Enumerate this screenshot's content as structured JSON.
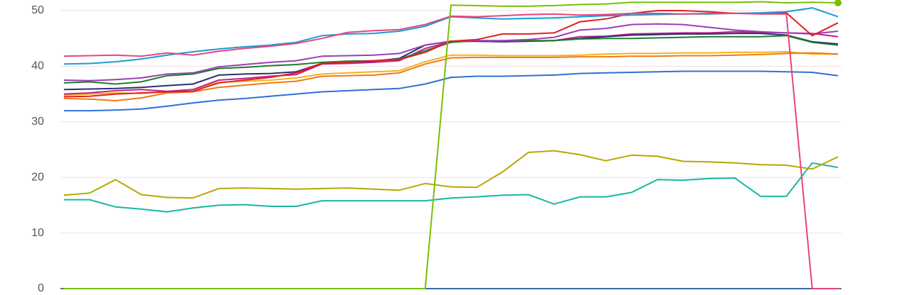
{
  "chart_data": {
    "type": "line",
    "categories": [
      null,
      null,
      null,
      null,
      null,
      null,
      null,
      null,
      null,
      null,
      null,
      null,
      null,
      null,
      null,
      null,
      null,
      null,
      null,
      null,
      null,
      null,
      null,
      null,
      null,
      null,
      null,
      null,
      null,
      null,
      null
    ],
    "ylim": [
      0,
      50
    ],
    "yticks": [
      0,
      10,
      20,
      30,
      40,
      50
    ],
    "grid": true,
    "series": [
      {
        "color": "#3a6aa0",
        "values": [
          0,
          0,
          0,
          0,
          0,
          0,
          0,
          0,
          0,
          0,
          0,
          0,
          0,
          0,
          0,
          0,
          0,
          0,
          0,
          0,
          0,
          0,
          0,
          0,
          0,
          0,
          0,
          0,
          0,
          0,
          0
        ]
      },
      {
        "color": "#18b8a0",
        "values": [
          16.0,
          16.0,
          14.7,
          14.3,
          13.8,
          14.5,
          15.0,
          15.1,
          14.8,
          14.8,
          15.8,
          15.8,
          15.8,
          15.8,
          15.8,
          16.3,
          16.5,
          16.8,
          16.9,
          15.2,
          16.5,
          16.5,
          17.3,
          19.6,
          19.5,
          19.8,
          19.9,
          16.6,
          16.6,
          22.6,
          21.8
        ]
      },
      {
        "color": "#b8a800",
        "values": [
          16.8,
          17.2,
          19.6,
          16.9,
          16.4,
          16.3,
          18.0,
          18.1,
          18.0,
          17.9,
          18.0,
          18.1,
          17.9,
          17.7,
          18.9,
          18.3,
          18.2,
          21.0,
          24.5,
          24.8,
          24.1,
          23.0,
          24.0,
          23.8,
          22.9,
          22.8,
          22.6,
          22.3,
          22.2,
          21.5,
          23.7
        ]
      },
      {
        "color": "#2f6fd6",
        "values": [
          32.0,
          32.0,
          32.1,
          32.3,
          32.8,
          33.4,
          33.9,
          34.2,
          34.6,
          35.0,
          35.4,
          35.6,
          35.8,
          36.0,
          36.8,
          38.0,
          38.2,
          38.2,
          38.3,
          38.4,
          38.7,
          38.8,
          38.9,
          39.0,
          39.1,
          39.1,
          39.1,
          39.1,
          39.0,
          38.9,
          38.3
        ]
      },
      {
        "color": "#f2b21a",
        "values": [
          34.8,
          35.0,
          35.2,
          35.1,
          35.4,
          35.8,
          37.1,
          37.3,
          37.5,
          37.9,
          38.6,
          38.8,
          39.0,
          39.2,
          40.8,
          42.0,
          42.0,
          41.9,
          41.9,
          41.9,
          42.0,
          42.2,
          42.3,
          42.3,
          42.4,
          42.4,
          42.5,
          42.5,
          42.6,
          42.2,
          42.2
        ]
      },
      {
        "color": "#f07a10",
        "values": [
          34.2,
          34.1,
          33.8,
          34.3,
          35.2,
          35.4,
          36.2,
          36.6,
          37.0,
          37.3,
          38.2,
          38.3,
          38.4,
          38.8,
          40.4,
          41.5,
          41.6,
          41.6,
          41.6,
          41.6,
          41.7,
          41.7,
          41.8,
          41.8,
          41.9,
          41.9,
          42.0,
          42.1,
          42.3,
          42.4,
          42.2
        ]
      },
      {
        "color": "#c0238f",
        "values": [
          35.0,
          35.2,
          35.6,
          35.8,
          35.5,
          35.8,
          37.5,
          37.8,
          38.2,
          38.5,
          40.4,
          40.5,
          40.7,
          41.0,
          43.2,
          44.4,
          44.5,
          44.4,
          44.5,
          44.6,
          45.3,
          45.4,
          45.8,
          45.9,
          46.0,
          46.0,
          46.2,
          46.1,
          46.0,
          45.9,
          45.3
        ]
      },
      {
        "color": "#2b2f6e",
        "values": [
          35.8,
          35.9,
          36.0,
          36.2,
          36.5,
          36.8,
          38.4,
          38.6,
          38.7,
          39.0,
          40.5,
          40.7,
          40.9,
          41.4,
          43.8,
          44.5,
          44.5,
          44.4,
          44.5,
          44.6,
          45.0,
          45.3,
          45.6,
          45.7,
          45.8,
          45.8,
          45.9,
          45.9,
          45.6,
          44.4,
          44.0
        ]
      },
      {
        "color": "#1e7d2e",
        "values": [
          37.0,
          37.2,
          36.8,
          37.2,
          38.3,
          38.6,
          39.6,
          39.8,
          40.1,
          40.3,
          40.7,
          40.9,
          41.0,
          41.3,
          42.8,
          44.3,
          44.6,
          44.5,
          44.6,
          44.6,
          44.9,
          45.0,
          45.0,
          45.1,
          45.2,
          45.3,
          45.3,
          45.3,
          45.5,
          44.3,
          43.8
        ]
      },
      {
        "color": "#9b3fb5",
        "values": [
          37.5,
          37.4,
          37.6,
          37.9,
          38.6,
          38.8,
          39.9,
          40.3,
          40.7,
          41.0,
          41.8,
          41.9,
          42.0,
          42.3,
          43.8,
          44.5,
          44.6,
          44.6,
          44.8,
          45.2,
          46.5,
          46.8,
          47.5,
          47.6,
          47.5,
          47.0,
          46.5,
          46.2,
          46.0,
          45.8,
          46.3
        ]
      },
      {
        "color": "#e02020",
        "values": [
          34.5,
          34.6,
          35.0,
          35.2,
          35.4,
          35.5,
          37.0,
          37.5,
          38.0,
          38.8,
          40.5,
          40.7,
          41.0,
          41.2,
          42.5,
          44.5,
          44.8,
          45.8,
          45.8,
          46.0,
          48.0,
          48.5,
          49.5,
          50.0,
          50.0,
          49.8,
          49.5,
          49.5,
          49.6,
          45.5,
          47.8
        ]
      },
      {
        "color": "#1a9ad6",
        "values": [
          40.4,
          40.5,
          40.8,
          41.3,
          42.0,
          42.6,
          43.1,
          43.5,
          43.8,
          44.3,
          45.5,
          45.8,
          45.9,
          46.3,
          47.2,
          48.9,
          48.7,
          48.5,
          48.6,
          48.7,
          48.9,
          49.1,
          49.2,
          49.3,
          49.4,
          49.4,
          49.5,
          49.6,
          49.8,
          50.5,
          48.9
        ]
      },
      {
        "color": "#e8457a",
        "values": [
          41.8,
          41.9,
          42.0,
          41.8,
          42.4,
          42.0,
          42.7,
          43.2,
          43.6,
          44.1,
          45.0,
          46.1,
          46.4,
          46.6,
          47.5,
          49.0,
          48.9,
          49.1,
          49.3,
          49.4,
          49.2,
          49.3,
          49.5,
          49.5,
          49.4,
          49.5,
          49.5,
          49.4,
          49.4,
          0,
          0
        ]
      },
      {
        "color": "#78c000",
        "values": [
          0,
          0,
          0,
          0,
          0,
          0,
          0,
          0,
          0,
          0,
          0,
          0,
          0,
          0,
          0,
          51.0,
          50.9,
          50.8,
          50.8,
          50.9,
          51.1,
          51.2,
          51.5,
          51.5,
          51.5,
          51.5,
          51.5,
          51.6,
          51.4,
          51.5,
          51.4
        ]
      }
    ]
  }
}
